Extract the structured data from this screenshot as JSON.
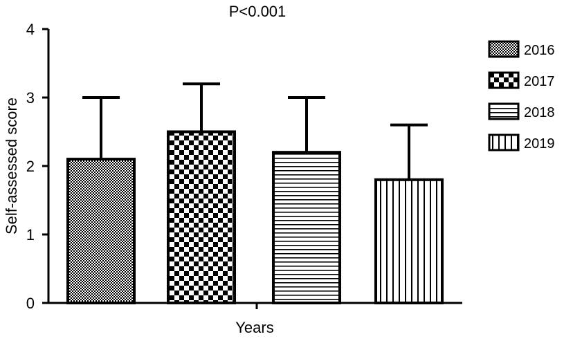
{
  "chart_data": {
    "type": "bar",
    "title": "P<0.001",
    "xlabel": "Years",
    "ylabel": "Self-assessed score",
    "categories": [
      "2016",
      "2017",
      "2018",
      "2019"
    ],
    "values": [
      2.1,
      2.5,
      2.2,
      1.8
    ],
    "error_upper": [
      3.0,
      3.2,
      3.0,
      2.6
    ],
    "ylim": [
      0,
      4
    ],
    "yticks": [
      0,
      1,
      2,
      3,
      4
    ],
    "grid": false,
    "legend_position": "right",
    "legend": [
      {
        "label": "2016",
        "pattern": "fine-dots"
      },
      {
        "label": "2017",
        "pattern": "checkerboard"
      },
      {
        "label": "2018",
        "pattern": "horizontal-lines"
      },
      {
        "label": "2019",
        "pattern": "vertical-lines"
      }
    ],
    "colors": {
      "ink": "#000000",
      "background": "#ffffff"
    }
  }
}
